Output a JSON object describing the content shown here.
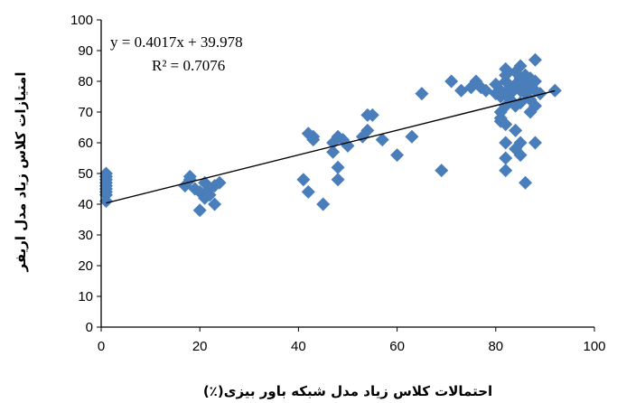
{
  "chart_data": {
    "type": "scatter",
    "xlabel": "احتمالات کلاس زیاد مدل شبکه باور بیزی(٪)",
    "ylabel": "امتیازات کلاس زیاد مدل اریفر",
    "xlim": [
      0,
      100
    ],
    "ylim": [
      0,
      100
    ],
    "x_ticks": [
      "0",
      "20",
      "40",
      "60",
      "80",
      "100"
    ],
    "y_ticks": [
      "0",
      "10",
      "20",
      "30",
      "40",
      "50",
      "60",
      "70",
      "80",
      "90",
      "100"
    ],
    "grid": false,
    "marker": "diamond",
    "marker_color": "#4a7ebb",
    "trendline": {
      "slope": 0.4017,
      "intercept": 39.978,
      "x_range": [
        1,
        92
      ],
      "equation_text": "y = 0.4017x   + 39.978",
      "r2_text": "R² = 0.7076",
      "color": "#000000"
    },
    "points": [
      [
        1,
        41
      ],
      [
        1,
        43
      ],
      [
        1,
        44
      ],
      [
        1,
        45
      ],
      [
        1,
        46
      ],
      [
        1,
        47
      ],
      [
        1,
        48
      ],
      [
        1,
        49
      ],
      [
        1,
        50
      ],
      [
        17,
        46
      ],
      [
        18,
        48
      ],
      [
        18,
        49
      ],
      [
        19,
        45
      ],
      [
        20,
        44
      ],
      [
        20,
        38
      ],
      [
        21,
        47
      ],
      [
        21,
        42
      ],
      [
        22,
        45
      ],
      [
        22,
        43
      ],
      [
        23,
        40
      ],
      [
        23,
        46
      ],
      [
        24,
        47
      ],
      [
        41,
        48
      ],
      [
        42,
        44
      ],
      [
        42,
        63
      ],
      [
        43,
        61
      ],
      [
        43,
        62
      ],
      [
        45,
        40
      ],
      [
        47,
        57
      ],
      [
        47,
        60
      ],
      [
        48,
        52
      ],
      [
        48,
        48
      ],
      [
        48,
        62
      ],
      [
        49,
        61
      ],
      [
        50,
        59
      ],
      [
        53,
        62
      ],
      [
        54,
        64
      ],
      [
        54,
        69
      ],
      [
        55,
        69
      ],
      [
        57,
        61
      ],
      [
        60,
        56
      ],
      [
        63,
        62
      ],
      [
        65,
        76
      ],
      [
        69,
        51
      ],
      [
        71,
        80
      ],
      [
        73,
        77
      ],
      [
        75,
        78
      ],
      [
        76,
        80
      ],
      [
        77,
        78
      ],
      [
        78,
        77
      ],
      [
        80,
        76
      ],
      [
        80,
        79
      ],
      [
        81,
        67
      ],
      [
        81,
        68
      ],
      [
        81,
        70
      ],
      [
        81,
        75
      ],
      [
        81,
        77
      ],
      [
        82,
        51
      ],
      [
        82,
        55
      ],
      [
        82,
        60
      ],
      [
        82,
        66
      ],
      [
        82,
        72
      ],
      [
        82,
        80
      ],
      [
        82,
        82
      ],
      [
        82,
        84
      ],
      [
        83,
        74
      ],
      [
        83,
        76
      ],
      [
        83,
        78
      ],
      [
        84,
        58
      ],
      [
        84,
        64
      ],
      [
        84,
        72
      ],
      [
        84,
        79
      ],
      [
        84,
        83
      ],
      [
        85,
        56
      ],
      [
        85,
        60
      ],
      [
        85,
        73
      ],
      [
        85,
        77
      ],
      [
        85,
        81
      ],
      [
        85,
        85
      ],
      [
        86,
        47
      ],
      [
        86,
        76
      ],
      [
        86,
        78
      ],
      [
        86,
        80
      ],
      [
        86,
        82
      ],
      [
        87,
        70
      ],
      [
        87,
        74
      ],
      [
        87,
        79
      ],
      [
        87,
        81
      ],
      [
        88,
        60
      ],
      [
        88,
        72
      ],
      [
        88,
        77
      ],
      [
        88,
        80
      ],
      [
        88,
        87
      ],
      [
        89,
        76
      ],
      [
        92,
        77
      ]
    ]
  }
}
